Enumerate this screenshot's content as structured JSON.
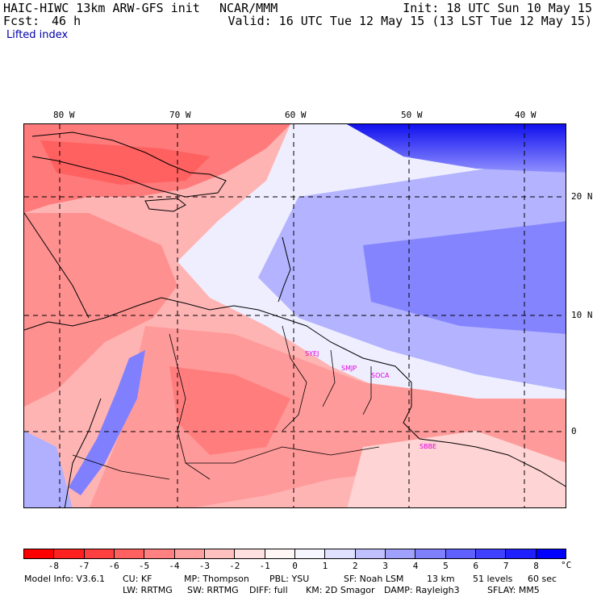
{
  "header": {
    "model": "HAIC-HIWC 13km ARW-GFS init",
    "org": "NCAR/MMM",
    "init": "Init: 18 UTC Sun 10 May 15",
    "fcst_label": "Fcst:",
    "fcst_value": "46 h",
    "valid": "Valid: 16 UTC Tue 12 May 15 (13 LST Tue 12 May 15)"
  },
  "subtitle": "Lifted index",
  "map": {
    "lon_labels": [
      "80 W",
      "70 W",
      "60 W",
      "50 W",
      "40 W"
    ],
    "lat_labels": [
      "20 N",
      "10 N",
      "0"
    ],
    "stations": [
      "SYEJ",
      "SMJP",
      "SOCA",
      "SBBE"
    ]
  },
  "colorbar": {
    "labels": [
      "-8",
      "-7",
      "-6",
      "-5",
      "-4",
      "-3",
      "-2",
      "-1",
      "0",
      "1",
      "2",
      "3",
      "4",
      "5",
      "6",
      "7",
      "8"
    ],
    "colors": [
      "#ff0000",
      "#ff2020",
      "#ff4040",
      "#ff6060",
      "#ff8080",
      "#ffa0a0",
      "#ffc0c0",
      "#ffe0e0",
      "#fff6f6",
      "#f6f6ff",
      "#e0e0ff",
      "#c0c0ff",
      "#a0a0ff",
      "#8080ff",
      "#6060ff",
      "#4040ff",
      "#2020ff",
      "#0000ff"
    ],
    "unit": "°C"
  },
  "model_info": {
    "row1": [
      "Model Info: V3.6.1",
      "CU: KF",
      "MP: Thompson",
      "PBL: YSU",
      "SF: Noah LSM",
      "13 km",
      "51 levels",
      "60 sec"
    ],
    "row2": [
      "LW: RRTMG",
      "SW: RRTMG",
      "DIFF: full",
      "KM: 2D Smagor",
      "DAMP: Rayleigh3",
      "SFLAY: MM5"
    ]
  }
}
